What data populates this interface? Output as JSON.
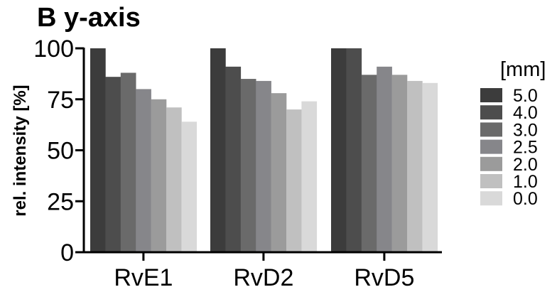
{
  "chart_data": {
    "type": "bar",
    "title": "B y-axis",
    "xlabel": "",
    "ylabel": "rel. intensity [%]",
    "ylim": [
      0,
      100
    ],
    "yticks": [
      "0",
      "25",
      "50",
      "75",
      "100"
    ],
    "categories": [
      "RvE1",
      "RvD2",
      "RvD5"
    ],
    "legend_title": "[mm]",
    "legend_position": "right",
    "grid": false,
    "series": [
      {
        "name": "5.0",
        "color": "#3c3c3c",
        "values": [
          100,
          100,
          100
        ]
      },
      {
        "name": "4.0",
        "color": "#4d4d4d",
        "values": [
          86,
          91,
          100
        ]
      },
      {
        "name": "3.0",
        "color": "#6a6a6a",
        "values": [
          88,
          85,
          87
        ]
      },
      {
        "name": "2.5",
        "color": "#86868a",
        "values": [
          80,
          84,
          91
        ]
      },
      {
        "name": "2.0",
        "color": "#9b9b9b",
        "values": [
          75,
          78,
          87
        ]
      },
      {
        "name": "1.0",
        "color": "#c0c0c0",
        "values": [
          71,
          70,
          84
        ]
      },
      {
        "name": "0.0",
        "color": "#d9d9d9",
        "values": [
          64,
          74,
          83
        ]
      }
    ]
  }
}
